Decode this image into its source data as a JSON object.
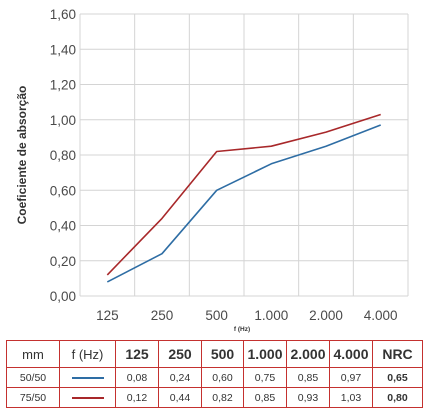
{
  "chart_data": {
    "type": "line",
    "ylabel": "Coeficiente de absorção",
    "xlabel": "f (Hz)",
    "categories": [
      "125",
      "250",
      "500",
      "1.000",
      "2.000",
      "4.000"
    ],
    "ylim": [
      0,
      1.6
    ],
    "yticks": [
      "0,00",
      "0,20",
      "0,40",
      "0,60",
      "0,80",
      "1,00",
      "1,20",
      "1,40",
      "1,60"
    ],
    "grid": true,
    "series": [
      {
        "name": "50/50",
        "color": "#2e6da4",
        "values": [
          0.08,
          0.24,
          0.6,
          0.75,
          0.85,
          0.97
        ]
      },
      {
        "name": "75/50",
        "color": "#a8282a",
        "values": [
          0.12,
          0.44,
          0.82,
          0.85,
          0.93,
          1.03
        ]
      }
    ]
  },
  "table": {
    "header": {
      "mm": "mm",
      "f": "f (Hz)",
      "freqs": [
        "125",
        "250",
        "500",
        "1.000",
        "2.000",
        "4.000"
      ],
      "nrc": "NRC"
    },
    "rows": [
      {
        "mm": "50/50",
        "color": "#2e6da4",
        "values": [
          "0,08",
          "0,24",
          "0,60",
          "0,75",
          "0,85",
          "0,97"
        ],
        "nrc": "0,65"
      },
      {
        "mm": "75/50",
        "color": "#a8282a",
        "values": [
          "0,12",
          "0,44",
          "0,82",
          "0,85",
          "0,93",
          "1,03"
        ],
        "nrc": "0,80"
      }
    ]
  }
}
